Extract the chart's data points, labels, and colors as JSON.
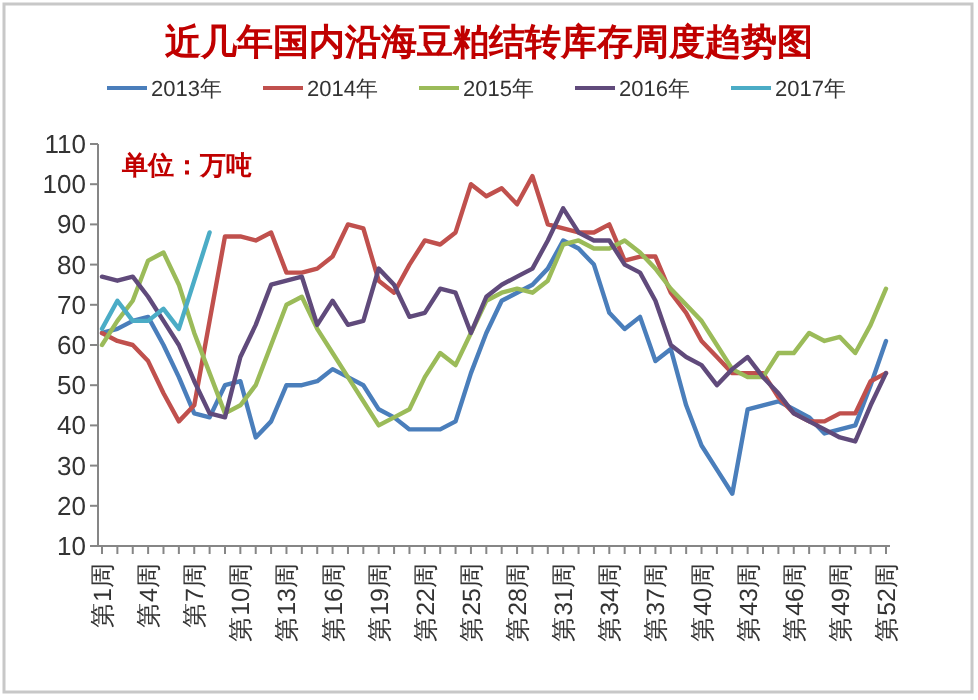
{
  "chart_data": {
    "type": "line",
    "title": "近几年国内沿海豆粕结转库存周度趋势图",
    "annotations": [
      "单位：万吨"
    ],
    "categories": [
      "第1周",
      null,
      null,
      "第4周",
      null,
      null,
      "第7周",
      null,
      null,
      "第10周",
      null,
      null,
      "第13周",
      null,
      null,
      "第16周",
      null,
      null,
      "第19周",
      null,
      null,
      "第22周",
      null,
      null,
      "第25周",
      null,
      null,
      "第28周",
      null,
      null,
      "第31周",
      null,
      null,
      "第34周",
      null,
      null,
      "第37周",
      null,
      null,
      "第40周",
      null,
      null,
      "第43周",
      null,
      null,
      "第46周",
      null,
      null,
      "第49周",
      null,
      null,
      "第52周"
    ],
    "series": [
      {
        "name": "2013年",
        "color": "#4a7ebb",
        "values": [
          63,
          64,
          66,
          67,
          60,
          52,
          43,
          42,
          50,
          51,
          37,
          41,
          50,
          50,
          51,
          54,
          52,
          50,
          44,
          42,
          39,
          39,
          39,
          41,
          53,
          63,
          71,
          73,
          75,
          79,
          86,
          84,
          80,
          68,
          64,
          67,
          56,
          59,
          45,
          35,
          29,
          23,
          44,
          45,
          46,
          44,
          42,
          38,
          39,
          40,
          50,
          61
        ]
      },
      {
        "name": "2014年",
        "color": "#c0504d",
        "values": [
          63,
          61,
          60,
          56,
          48,
          41,
          45,
          66,
          87,
          87,
          86,
          88,
          78,
          78,
          79,
          82,
          90,
          89,
          76,
          73,
          80,
          86,
          85,
          88,
          100,
          97,
          99,
          95,
          102,
          90,
          89,
          88,
          88,
          90,
          81,
          82,
          82,
          73,
          68,
          61,
          57,
          53,
          53,
          53,
          47,
          43,
          41,
          41,
          43,
          43,
          51,
          53
        ]
      },
      {
        "name": "2015年",
        "color": "#9bbb59",
        "values": [
          60,
          66,
          71,
          81,
          83,
          75,
          63,
          53,
          43,
          45,
          50,
          60,
          70,
          72,
          64,
          58,
          52,
          46,
          40,
          42,
          44,
          52,
          58,
          55,
          63,
          71,
          73,
          74,
          73,
          76,
          85,
          86,
          84,
          84,
          86,
          83,
          79,
          74,
          70,
          66,
          60,
          54,
          52,
          52,
          58,
          58,
          63,
          61,
          62,
          58,
          65,
          74
        ]
      },
      {
        "name": "2016年",
        "color": "#604a7b",
        "values": [
          77,
          76,
          77,
          72,
          66,
          60,
          51,
          43,
          42,
          57,
          65,
          75,
          76,
          77,
          65,
          71,
          65,
          66,
          79,
          75,
          67,
          68,
          74,
          73,
          63,
          72,
          75,
          77,
          79,
          86,
          94,
          88,
          86,
          86,
          80,
          78,
          71,
          60,
          57,
          55,
          50,
          54,
          57,
          52,
          48,
          43,
          41,
          39,
          37,
          36,
          45,
          53
        ]
      },
      {
        "name": "2017年",
        "color": "#4bacc6",
        "values": [
          64,
          71,
          66,
          66,
          69,
          64,
          76,
          88,
          null,
          null,
          null,
          null,
          null,
          null,
          null,
          null,
          null,
          null,
          null,
          null,
          null,
          null,
          null,
          null,
          null,
          null,
          null,
          null,
          null,
          null,
          null,
          null,
          null,
          null,
          null,
          null,
          null,
          null,
          null,
          null,
          null,
          null,
          null,
          null,
          null,
          null,
          null,
          null,
          null,
          null,
          null,
          null
        ]
      }
    ],
    "ylim": [
      10,
      110
    ],
    "yticks": [
      10,
      20,
      30,
      40,
      50,
      60,
      70,
      80,
      90,
      100,
      110
    ],
    "legend": "top",
    "grid": false,
    "marker": "none",
    "line_style": "solid"
  }
}
